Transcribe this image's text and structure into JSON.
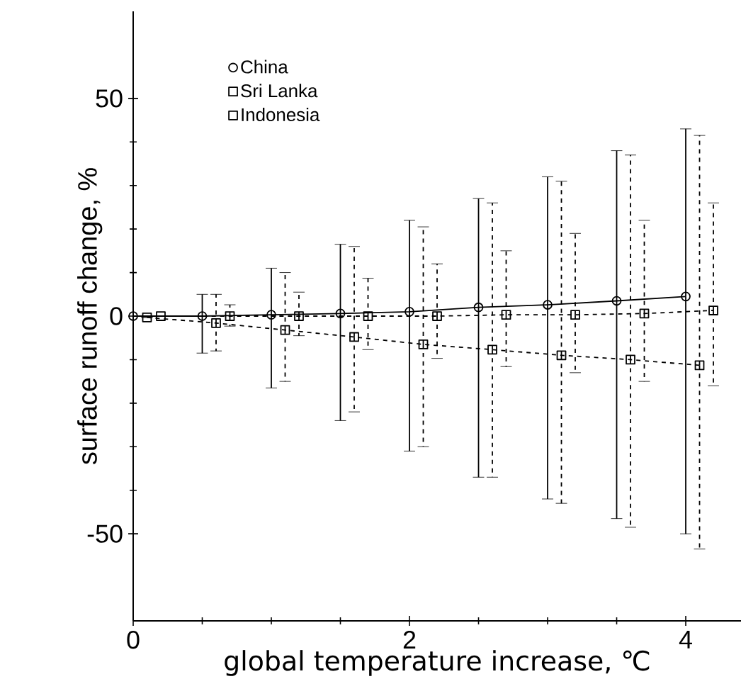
{
  "chart_data": {
    "type": "line",
    "xlabel": "global temperature increase, ℃",
    "ylabel": "surface runoff change, %",
    "xlim": [
      0,
      4.4
    ],
    "ylim": [
      -70,
      70
    ],
    "xticks": [
      0,
      2,
      4
    ],
    "yticks": [
      -50,
      0,
      50
    ],
    "legend": "top left",
    "grid": false,
    "series": [
      {
        "name": "China",
        "color": "#000000",
        "marker": "circle",
        "line_style": "solid",
        "x": [
          0,
          0.5,
          1,
          1.5,
          2,
          2.5,
          3,
          3.5,
          4
        ],
        "values": [
          0,
          0,
          0.3,
          0.6,
          1,
          2,
          2.6,
          3.5,
          4.5
        ],
        "errors": [
          null,
          [
            -8.5,
            5
          ],
          [
            -16.5,
            11
          ],
          [
            -24,
            16.5
          ],
          [
            -31,
            22
          ],
          [
            -37,
            27
          ],
          [
            -42,
            32
          ],
          [
            -46.5,
            38
          ],
          [
            -50,
            43
          ]
        ]
      },
      {
        "name": "Sri Lanka",
        "color": "#000000",
        "marker": "square",
        "line_style": "dashed",
        "x": [
          0.1,
          0.6,
          1.1,
          1.6,
          2.1,
          2.6,
          3.1,
          3.6,
          4.1
        ],
        "values": [
          -0.3,
          -1.6,
          -3.2,
          -4.8,
          -6.5,
          -7.7,
          -9,
          -10,
          -11.3
        ],
        "errors": [
          null,
          [
            -8,
            5
          ],
          [
            -15,
            10
          ],
          [
            -22,
            16
          ],
          [
            -30,
            20.5
          ],
          [
            -37,
            26
          ],
          [
            -43,
            31
          ],
          [
            -48.5,
            37
          ],
          [
            -53.5,
            41.5
          ]
        ]
      },
      {
        "name": "Indonesia",
        "color": "#000000",
        "marker": "square",
        "line_style": "dashed",
        "x": [
          0.2,
          0.7,
          1.2,
          1.7,
          2.2,
          2.7,
          3.2,
          3.7,
          4.2
        ],
        "values": [
          0,
          0,
          0,
          0,
          0,
          0.3,
          0.3,
          0.6,
          1.3
        ],
        "errors": [
          null,
          [
            -2.3,
            2.6
          ],
          [
            -4.5,
            5.5
          ],
          [
            -7.7,
            8.7
          ],
          [
            -9.7,
            12
          ],
          [
            -11.6,
            15
          ],
          [
            -13,
            19
          ],
          [
            -15,
            22
          ],
          [
            -16,
            26
          ]
        ]
      }
    ]
  }
}
